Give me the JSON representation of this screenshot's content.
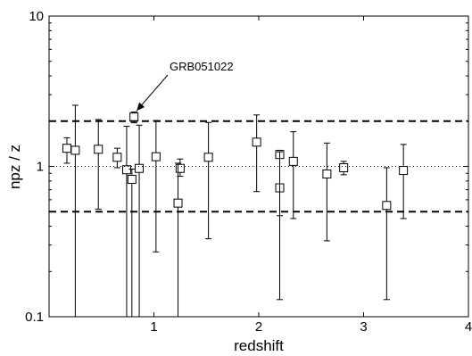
{
  "chart_data": {
    "type": "scatter",
    "xlabel": "redshift",
    "ylabel": "npz / z",
    "xlim": [
      0,
      4
    ],
    "ylim": [
      0.1,
      10
    ],
    "yscale": "log",
    "x_ticks": [
      1,
      2,
      3,
      4
    ],
    "y_ticks": [
      {
        "value": 0.1,
        "label": "0.1"
      },
      {
        "value": 1,
        "label": "1"
      },
      {
        "value": 10,
        "label": "10"
      }
    ],
    "reference_lines": [
      {
        "y": 2,
        "style": "dashed"
      },
      {
        "y": 1,
        "style": "dotted"
      },
      {
        "y": 0.5,
        "style": "dashed"
      }
    ],
    "points": [
      {
        "x": 0.17,
        "y": 1.32,
        "lo": 1.05,
        "hi": 1.55
      },
      {
        "x": 0.25,
        "y": 1.28,
        "lo": 0.1,
        "hi": 2.55
      },
      {
        "x": 0.47,
        "y": 1.3,
        "lo": 0.52,
        "hi": 2.05
      },
      {
        "x": 0.65,
        "y": 1.15,
        "lo": 0.98,
        "hi": 1.32
      },
      {
        "x": 0.74,
        "y": 0.95,
        "lo": 0.1,
        "hi": 1.85
      },
      {
        "x": 0.79,
        "y": 0.82,
        "lo": 0.1,
        "hi": 0.96
      },
      {
        "x": 0.81,
        "y": 2.13,
        "lo": 1.95,
        "hi": 2.3
      },
      {
        "x": 0.86,
        "y": 0.97,
        "lo": 0.1,
        "hi": 1.88
      },
      {
        "x": 1.02,
        "y": 1.16,
        "lo": 0.27,
        "hi": 2.02
      },
      {
        "x": 1.23,
        "y": 0.57,
        "lo": 0.1,
        "hi": 1.05
      },
      {
        "x": 1.25,
        "y": 0.97,
        "lo": 0.86,
        "hi": 1.12
      },
      {
        "x": 1.52,
        "y": 1.15,
        "lo": 0.33,
        "hi": 1.96
      },
      {
        "x": 1.98,
        "y": 1.45,
        "lo": 0.68,
        "hi": 2.2
      },
      {
        "x": 2.2,
        "y": 1.2,
        "lo": 0.47,
        "hi": 1.28
      },
      {
        "x": 2.2,
        "y": 0.72,
        "lo": 0.13,
        "hi": 1.25
      },
      {
        "x": 2.33,
        "y": 1.08,
        "lo": 0.45,
        "hi": 1.7
      },
      {
        "x": 2.65,
        "y": 0.89,
        "lo": 0.32,
        "hi": 1.43
      },
      {
        "x": 2.81,
        "y": 0.98,
        "lo": 0.88,
        "hi": 1.08
      },
      {
        "x": 3.22,
        "y": 0.55,
        "lo": 0.13,
        "hi": 0.98
      },
      {
        "x": 3.38,
        "y": 0.94,
        "lo": 0.45,
        "hi": 1.4
      }
    ],
    "annotations": [
      {
        "text": "GRB051022",
        "target_x": 0.81,
        "target_y": 2.13
      }
    ]
  }
}
